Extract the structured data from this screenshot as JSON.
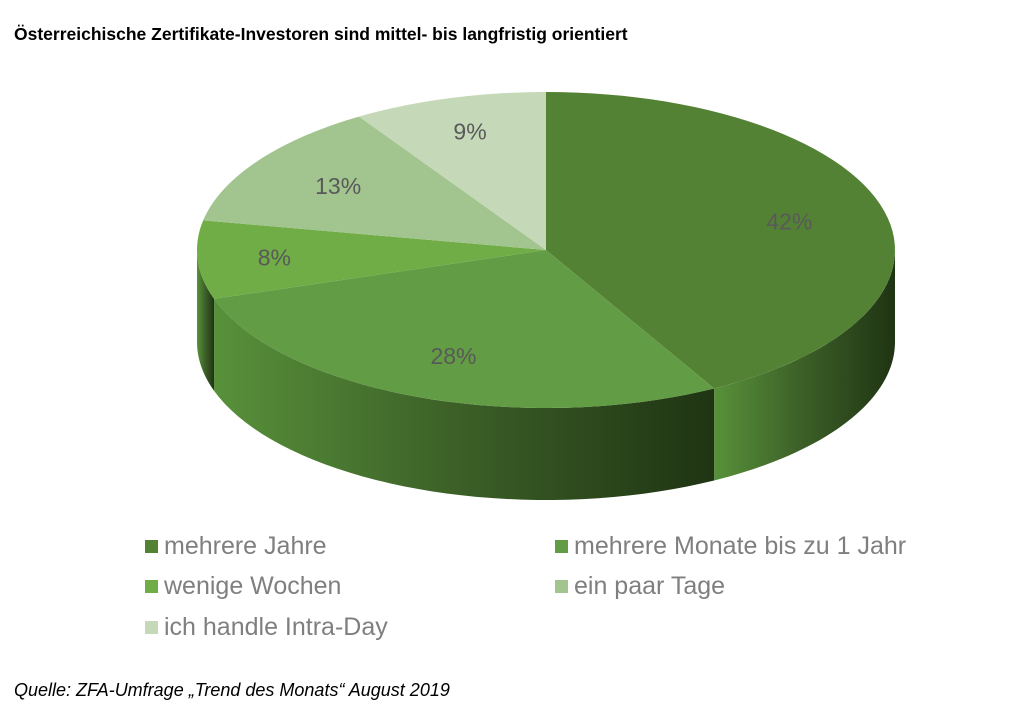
{
  "title": "Österreichische Zertifikate-Investoren sind mittel- bis langfristig orientiert",
  "source": "Quelle: ZFA-Umfrage „Trend des Monats“ August 2019",
  "chart_data": {
    "type": "pie",
    "style": "3d",
    "start": "12 o'clock, clockwise",
    "legend_position": "bottom",
    "slices": [
      {
        "name": "mehrere Jahre",
        "value": 42,
        "label": "42%",
        "color": "#548235"
      },
      {
        "name": "mehrere Monate bis zu 1 Jahr",
        "value": 28,
        "label": "28%",
        "color": "#629c44"
      },
      {
        "name": "wenige Wochen",
        "value": 8,
        "label": "8%",
        "color": "#70ad47"
      },
      {
        "name": "ein paar Tage",
        "value": 13,
        "label": "13%",
        "color": "#a2c48e"
      },
      {
        "name": "ich handle Intra-Day",
        "value": 9,
        "label": "9%",
        "color": "#c5d9b8"
      }
    ]
  }
}
